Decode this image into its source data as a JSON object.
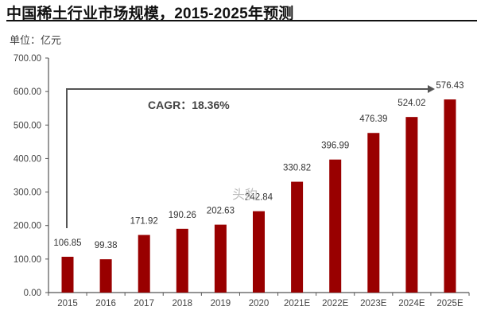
{
  "header": {
    "title": "中国稀土行业市场规模，2015-2025年预测",
    "unit": "单位：亿元"
  },
  "annotation": {
    "cagr": "CAGR：18.36%"
  },
  "watermark": "头豹",
  "colors": {
    "bar": "#990000",
    "axis": "#555555",
    "arrow": "#555555"
  },
  "chart_data": {
    "type": "bar",
    "title": "中国稀土行业市场规模，2015-2025年预测",
    "xlabel": "",
    "ylabel": "单位：亿元",
    "ylim": [
      0,
      700
    ],
    "yticks": [
      "0.00",
      "100.00",
      "200.00",
      "300.00",
      "400.00",
      "500.00",
      "600.00",
      "700.00"
    ],
    "grid": false,
    "legend": null,
    "categories": [
      "2015",
      "2016",
      "2017",
      "2018",
      "2019",
      "2020",
      "2021E",
      "2022E",
      "2023E",
      "2024E",
      "2025E"
    ],
    "values": [
      106.85,
      99.38,
      171.92,
      190.26,
      202.63,
      242.84,
      330.82,
      396.99,
      476.39,
      524.02,
      576.43
    ],
    "value_labels": [
      "106.85",
      "99.38",
      "171.92",
      "190.26",
      "202.63",
      "242.84",
      "330.82",
      "396.99",
      "476.39",
      "524.02",
      "576.43"
    ],
    "annotations": [
      "CAGR：18.36%"
    ]
  }
}
